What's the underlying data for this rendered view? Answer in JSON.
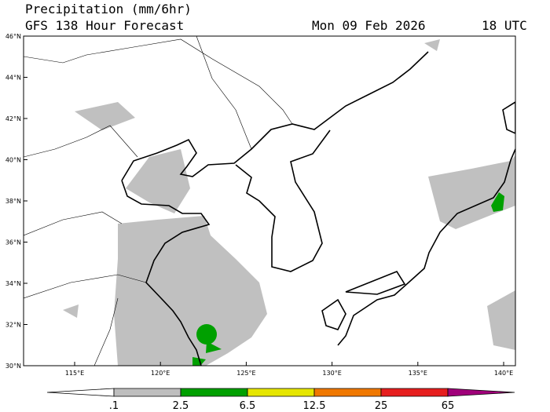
{
  "header": {
    "title": "Precipitation (mm/6hr)",
    "subtitle": "GFS 138 Hour Forecast",
    "date": "Mon 09 Feb 2026",
    "time": "18 UTC"
  },
  "map": {
    "lat_ticks": [
      "30°N",
      "32°N",
      "34°N",
      "36°N",
      "38°N",
      "40°N",
      "42°N",
      "44°N",
      "46°N"
    ],
    "lon_ticks": [
      "115°E",
      "120°E",
      "125°E",
      "130°E",
      "135°E",
      "140°E"
    ]
  },
  "colorbar": {
    "labels": [
      ".1",
      "2.5",
      "6.5",
      "12.5",
      "25",
      "65"
    ],
    "colors": [
      "#ffffff",
      "#bebebe",
      "#00a000",
      "#e6e600",
      "#f07800",
      "#e61e1e",
      "#a0007a"
    ]
  }
}
